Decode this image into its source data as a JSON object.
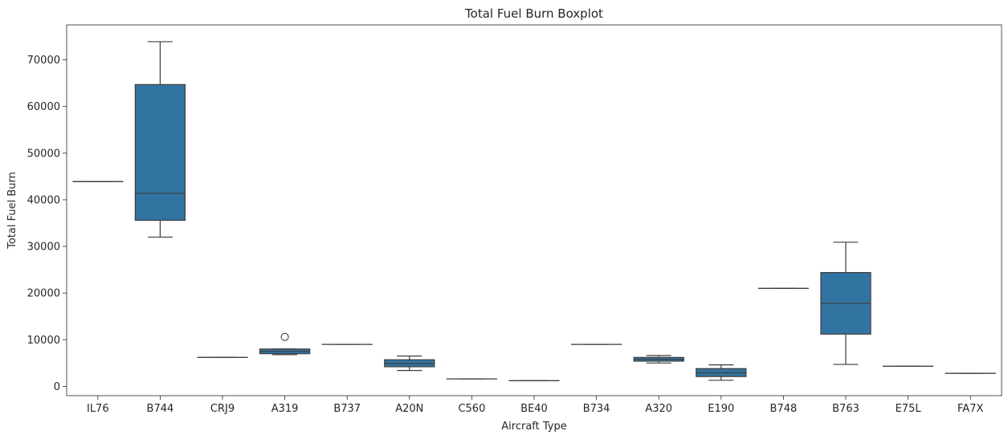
{
  "chart_data": {
    "type": "boxplot",
    "title": "Total Fuel Burn Boxplot",
    "xlabel": "Aircraft Type",
    "ylabel": "Total Fuel Burn",
    "ylim": [
      -2000,
      77500
    ],
    "yticks": [
      0,
      10000,
      20000,
      30000,
      40000,
      50000,
      60000,
      70000
    ],
    "grid": false,
    "box_color": "#3274a1",
    "line_color": "#3d3d3d",
    "categories": [
      "IL76",
      "B744",
      "CRJ9",
      "A319",
      "B737",
      "A20N",
      "C560",
      "BE40",
      "B734",
      "A320",
      "E190",
      "B748",
      "B763",
      "E75L",
      "FA7X"
    ],
    "boxes": [
      {
        "category": "IL76",
        "whisker_low": 43900,
        "q1": 43900,
        "median": 43900,
        "q3": 43900,
        "whisker_high": 43900,
        "outliers": []
      },
      {
        "category": "B744",
        "whisker_low": 32000,
        "q1": 35600,
        "median": 41400,
        "q3": 64700,
        "whisker_high": 73900,
        "outliers": []
      },
      {
        "category": "CRJ9",
        "whisker_low": 6200,
        "q1": 6200,
        "median": 6200,
        "q3": 6200,
        "whisker_high": 6200,
        "outliers": []
      },
      {
        "category": "A319",
        "whisker_low": 6800,
        "q1": 7000,
        "median": 7500,
        "q3": 8000,
        "whisker_high": 8000,
        "outliers": [
          10600
        ]
      },
      {
        "category": "B737",
        "whisker_low": 9000,
        "q1": 9000,
        "median": 9000,
        "q3": 9000,
        "whisker_high": 9000,
        "outliers": []
      },
      {
        "category": "A20N",
        "whisker_low": 3400,
        "q1": 4200,
        "median": 4900,
        "q3": 5700,
        "whisker_high": 6500,
        "outliers": []
      },
      {
        "category": "C560",
        "whisker_low": 1600,
        "q1": 1600,
        "median": 1600,
        "q3": 1600,
        "whisker_high": 1600,
        "outliers": []
      },
      {
        "category": "BE40",
        "whisker_low": 1200,
        "q1": 1200,
        "median": 1200,
        "q3": 1200,
        "whisker_high": 1200,
        "outliers": []
      },
      {
        "category": "B734",
        "whisker_low": 9000,
        "q1": 9000,
        "median": 9000,
        "q3": 9000,
        "whisker_high": 9000,
        "outliers": []
      },
      {
        "category": "A320",
        "whisker_low": 5000,
        "q1": 5400,
        "median": 5800,
        "q3": 6200,
        "whisker_high": 6600,
        "outliers": []
      },
      {
        "category": "E190",
        "whisker_low": 1300,
        "q1": 2100,
        "median": 2900,
        "q3": 3800,
        "whisker_high": 4600,
        "outliers": []
      },
      {
        "category": "B748",
        "whisker_low": 21000,
        "q1": 21000,
        "median": 21000,
        "q3": 21000,
        "whisker_high": 21000,
        "outliers": []
      },
      {
        "category": "B763",
        "whisker_low": 4700,
        "q1": 11200,
        "median": 17800,
        "q3": 24400,
        "whisker_high": 30900,
        "outliers": []
      },
      {
        "category": "E75L",
        "whisker_low": 4300,
        "q1": 4300,
        "median": 4300,
        "q3": 4300,
        "whisker_high": 4300,
        "outliers": []
      },
      {
        "category": "FA7X",
        "whisker_low": 2800,
        "q1": 2800,
        "median": 2800,
        "q3": 2800,
        "whisker_high": 2800,
        "outliers": []
      }
    ]
  }
}
